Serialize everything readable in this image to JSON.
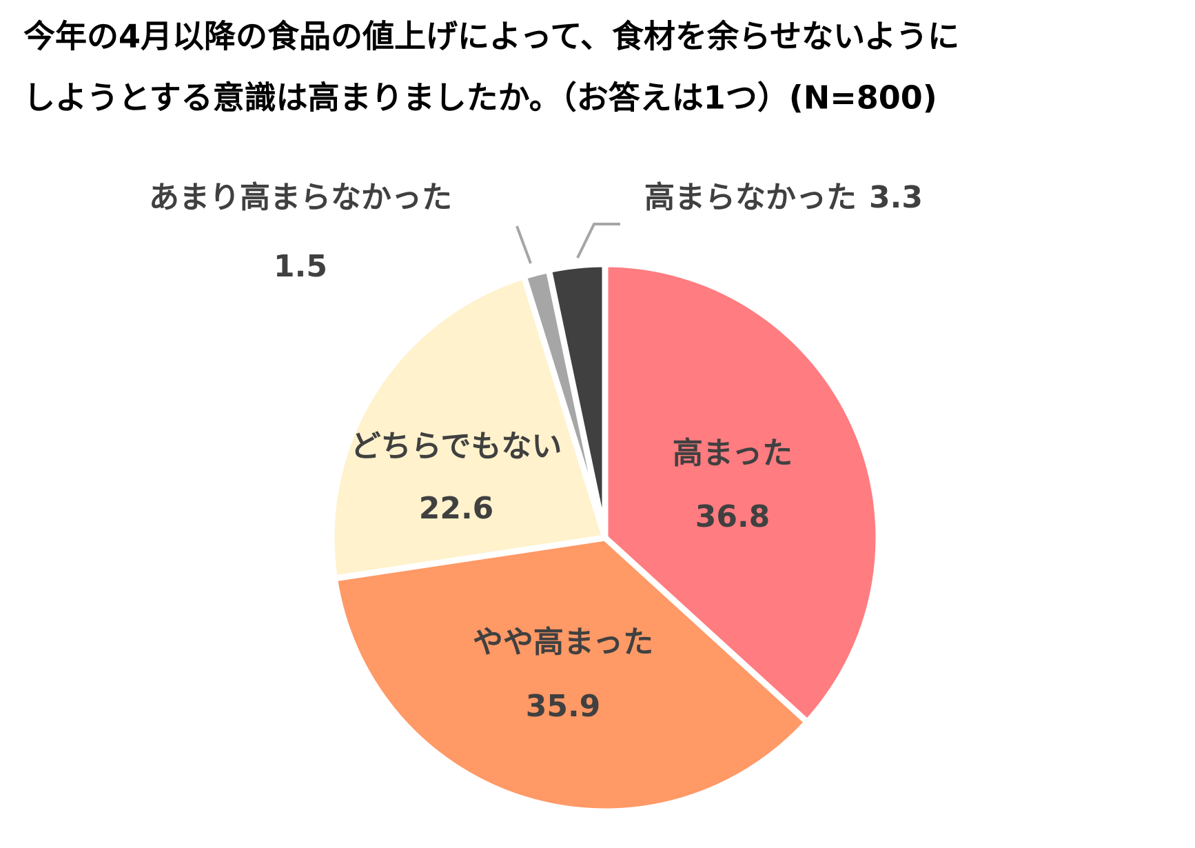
{
  "chart_data": {
    "type": "pie",
    "title": [
      "今年の4月以降の食品の値上げによって、食材を余らせないように",
      "しようとする意識は高まりましたか。（お答えは1つ）(N=800)"
    ],
    "categories": [
      "高まった",
      "やや高まった",
      "どちらでもない",
      "あまり高まらなかった",
      "高まらなかった"
    ],
    "values": [
      36.8,
      35.9,
      22.6,
      1.5,
      3.3
    ],
    "colors": [
      "#FF7C80",
      "#FF9966",
      "#FFF2CC",
      "#A6A6A6",
      "#404040"
    ]
  }
}
